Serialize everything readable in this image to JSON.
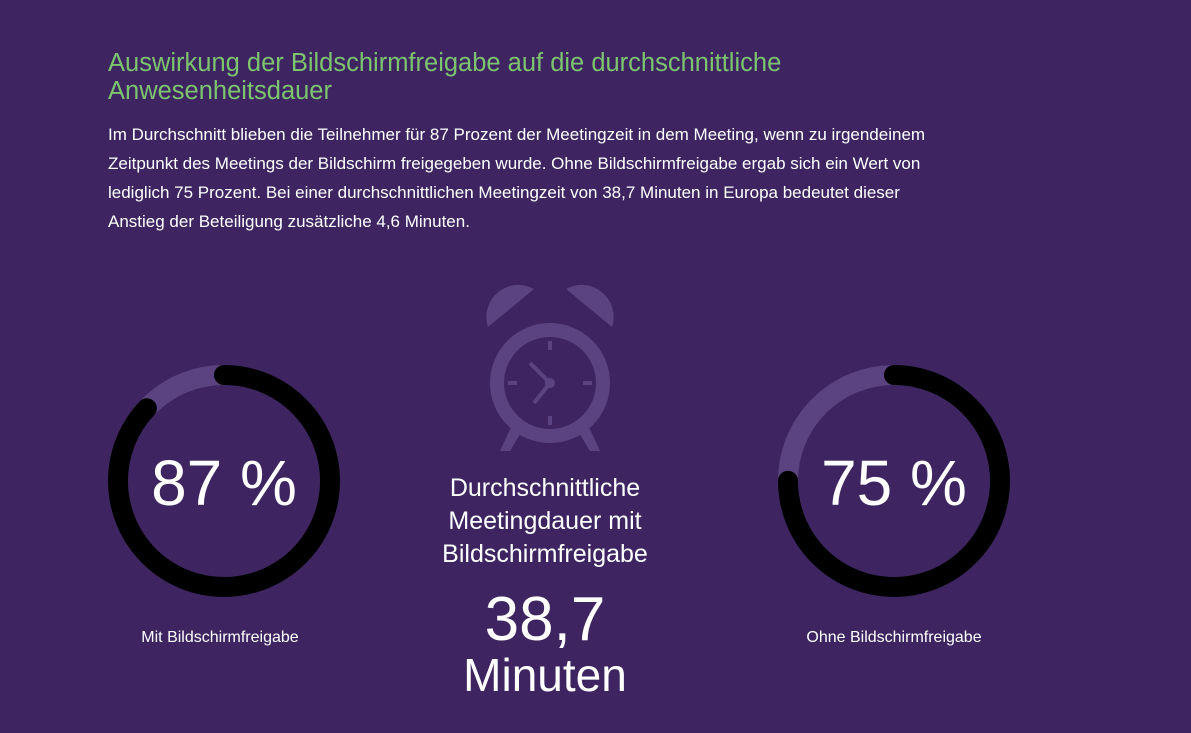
{
  "heading": "Auswirkung der Bildschirmfreigabe auf die durchschnittliche Anwesenheitsdauer",
  "intro": "Im Durchschnitt blieben die Teilnehmer für 87 Prozent der Meetingzeit in dem Meeting, wenn zu irgendeinem Zeitpunkt des Meetings der Bildschirm freigegeben wurde. Ohne Bildschirmfreigabe ergab sich ein Wert von lediglich 75 Prozent. Bei einer durchschnittlichen Meetingzeit von 38,7 Minuten in Europa bedeutet dieser Anstieg der Beteiligung zusätzliche 4,6 Minuten.",
  "colors": {
    "background": "#3e2562",
    "heading": "#7cc46e",
    "ring_track": "#5a4380",
    "ring_fill": "#000000",
    "icon": "#5a4380"
  },
  "center": {
    "icon": "alarm-clock-icon",
    "label": "Durchschnittliche Meetingdauer mit Bildschirmfreigabe",
    "value": "38,7",
    "unit": "Minuten"
  },
  "chart_data": [
    {
      "type": "pie",
      "categories": [
        "Mit Bildschirmfreigabe"
      ],
      "values": [
        87
      ],
      "value_label": "87 %",
      "label": "Mit Bildschirmfreigabe"
    },
    {
      "type": "pie",
      "categories": [
        "Ohne Bildschirmfreigabe"
      ],
      "values": [
        75
      ],
      "value_label": "75 %",
      "label": "Ohne Bildschirmfreigabe"
    }
  ]
}
